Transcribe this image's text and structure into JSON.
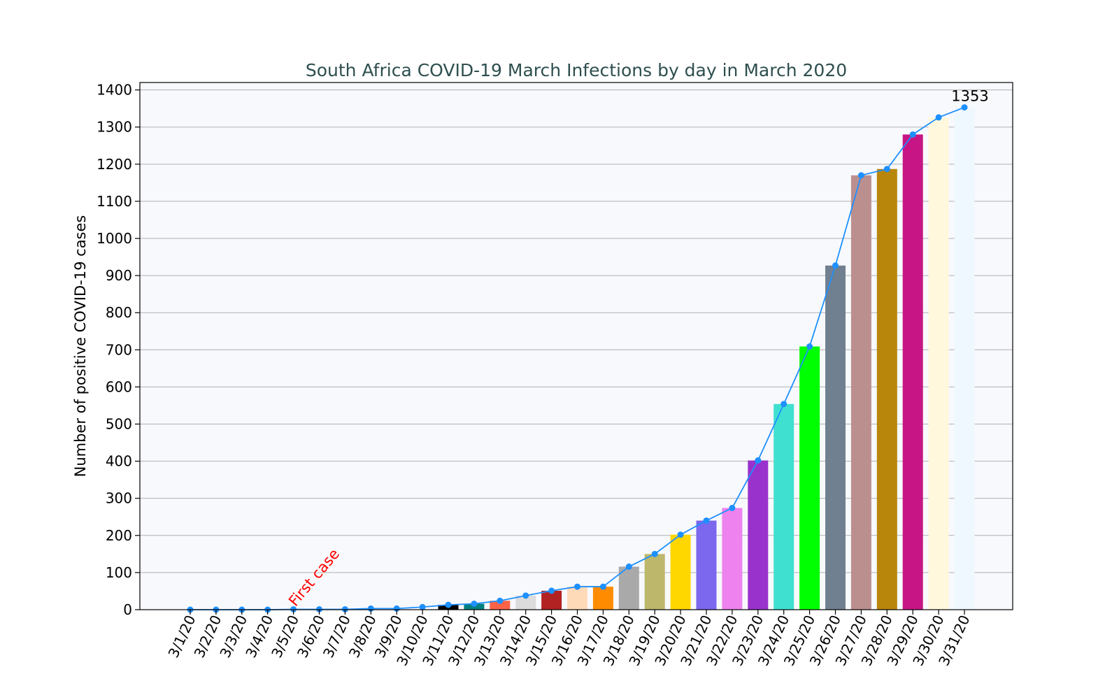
{
  "chart_data": {
    "type": "bar",
    "title": "South Africa COVID-19 March Infections by day in March 2020",
    "xlabel": "",
    "ylabel": "Number of positive COVID-19 cases",
    "ylim": [
      0,
      1420
    ],
    "yticks": [
      0,
      100,
      200,
      300,
      400,
      500,
      600,
      700,
      800,
      900,
      1000,
      1100,
      1200,
      1300,
      1400
    ],
    "grid": "horizontal",
    "background_color": "#f8f9fd",
    "line_color": "#1e90ff",
    "categories": [
      "3/1/20",
      "3/2/20",
      "3/3/20",
      "3/4/20",
      "3/5/20",
      "3/6/20",
      "3/7/20",
      "3/8/20",
      "3/9/20",
      "3/10/20",
      "3/11/20",
      "3/12/20",
      "3/13/20",
      "3/14/20",
      "3/15/20",
      "3/16/20",
      "3/17/20",
      "3/18/20",
      "3/19/20",
      "3/20/20",
      "3/21/20",
      "3/22/20",
      "3/23/20",
      "3/24/20",
      "3/25/20",
      "3/26/20",
      "3/27/20",
      "3/28/20",
      "3/29/20",
      "3/30/20",
      "3/31/20"
    ],
    "values": [
      0,
      0,
      0,
      0,
      1,
      1,
      1,
      3,
      3,
      7,
      13,
      16,
      24,
      38,
      51,
      62,
      62,
      116,
      150,
      202,
      240,
      274,
      402,
      554,
      709,
      927,
      1170,
      1187,
      1280,
      1326,
      1353
    ],
    "bar_colors": [
      "#ffffff",
      "#ffffff",
      "#ffffff",
      "#ffffff",
      "#ffffff",
      "#ffffff",
      "#ffffff",
      "#ffffff",
      "#ffffff",
      "#ffffff",
      "#000000",
      "#008080",
      "#ff6347",
      "#dcdcdc",
      "#b22222",
      "#ffdab9",
      "#ff8c00",
      "#a9a9a9",
      "#bdb76b",
      "#ffd700",
      "#7b68ee",
      "#ee82ee",
      "#9932cc",
      "#40e0d0",
      "#00ff00",
      "#708090",
      "#bc8f8f",
      "#b8860b",
      "#c71585",
      "#fff8dc",
      "#f0f8ff"
    ],
    "annotations": [
      {
        "text": "First case",
        "category": "3/5/20",
        "color": "#ff0000"
      },
      {
        "text": "1353",
        "category": "3/31/20",
        "color": "#000000"
      }
    ]
  }
}
